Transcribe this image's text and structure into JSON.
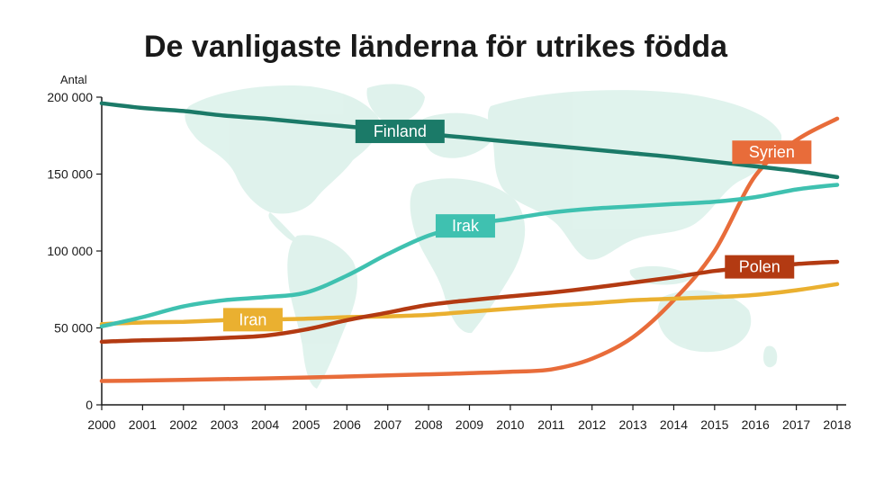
{
  "chart_data": {
    "type": "line",
    "title": "De vanligaste länderna för utrikes födda",
    "ylabel": "Antal",
    "xlabel": "",
    "x": [
      2000,
      2001,
      2002,
      2003,
      2004,
      2005,
      2006,
      2007,
      2008,
      2009,
      2010,
      2011,
      2012,
      2013,
      2014,
      2015,
      2016,
      2017,
      2018
    ],
    "x_tick_labels": [
      "2000",
      "2001",
      "2002",
      "2003",
      "2004",
      "2005",
      "2006",
      "2007",
      "2008",
      "2009",
      "2010",
      "2011",
      "2012",
      "2013",
      "2014",
      "2015",
      "2016",
      "2017",
      "2018"
    ],
    "ylim": [
      0,
      200000
    ],
    "y_ticks": [
      0,
      50000,
      100000,
      150000,
      200000
    ],
    "y_tick_labels": [
      "0",
      "50 000",
      "100 000",
      "150 000",
      "200 000"
    ],
    "grid": false,
    "background": "world-map",
    "series": [
      {
        "name": "Finland",
        "color": "#1b7a68",
        "values": [
          196000,
          193000,
          191000,
          188000,
          186000,
          183500,
          181000,
          178500,
          176000,
          173500,
          171000,
          168500,
          166000,
          163500,
          161000,
          158000,
          155000,
          152000,
          148000
        ]
      },
      {
        "name": "Irak",
        "color": "#3fc1b0",
        "values": [
          51000,
          57000,
          64000,
          68000,
          70000,
          73000,
          84000,
          98000,
          110000,
          117000,
          121000,
          125000,
          127500,
          129000,
          130500,
          132000,
          135000,
          140000,
          143000
        ]
      },
      {
        "name": "Syrien",
        "color": "#e86c3a",
        "values": [
          15500,
          15800,
          16200,
          16700,
          17200,
          17800,
          18400,
          19100,
          19800,
          20600,
          21500,
          23000,
          30000,
          44000,
          68000,
          100000,
          149000,
          172000,
          186000
        ]
      },
      {
        "name": "Polen",
        "color": "#b33a12",
        "values": [
          41000,
          42000,
          42500,
          43500,
          45000,
          49000,
          55000,
          60000,
          65000,
          68000,
          70500,
          73000,
          76000,
          79500,
          83000,
          87000,
          89500,
          91500,
          93000
        ]
      },
      {
        "name": "Iran",
        "color": "#eab030",
        "values": [
          52500,
          53500,
          54000,
          55000,
          55500,
          56000,
          57000,
          57500,
          58500,
          60500,
          62500,
          64500,
          66000,
          68000,
          69000,
          70000,
          71500,
          74500,
          78500
        ]
      }
    ]
  }
}
